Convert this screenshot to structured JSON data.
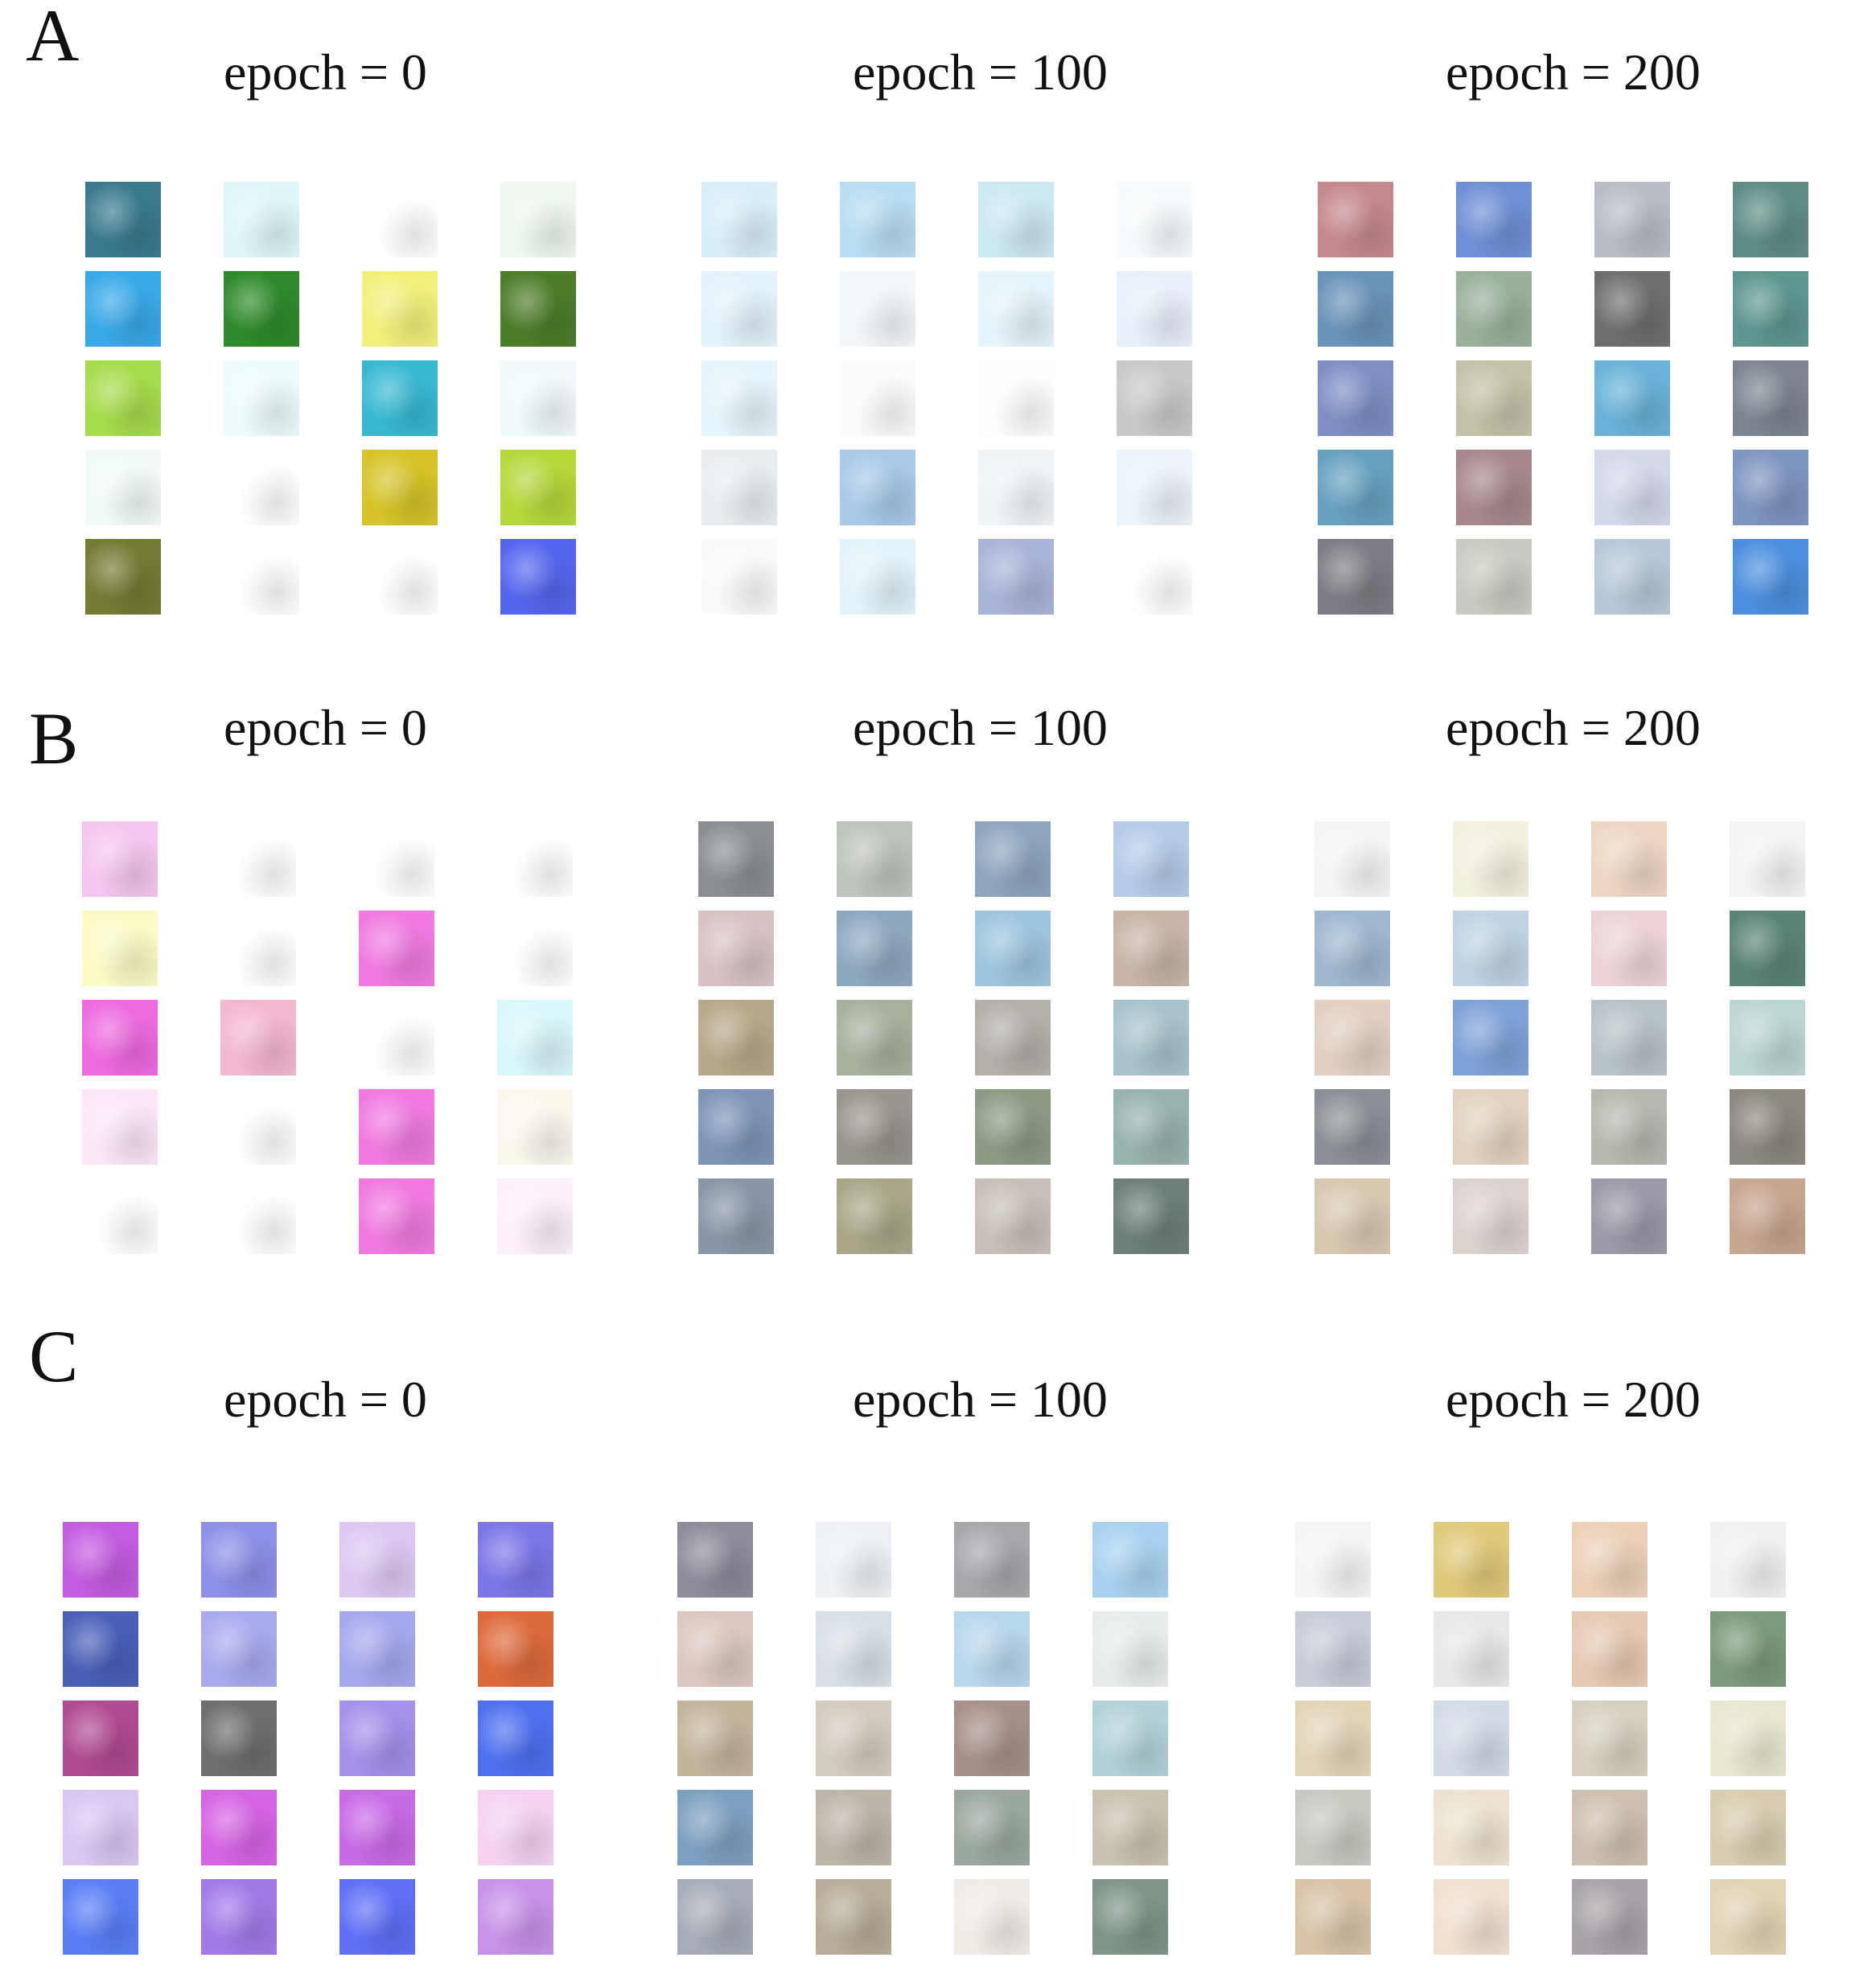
{
  "figure": {
    "panels": [
      {
        "letter": "A",
        "epochs": [
          {
            "label": "epoch = 0",
            "tiles": [
              [
                "#3a7a8e",
                "#dff6f8",
                "#ffffff",
                "#eef8ee"
              ],
              [
                "#39a9e8",
                "#2f8a2c",
                "#f2f07a",
                "#4d7d2a"
              ],
              [
                "#a6dc4c",
                "#eefbfd",
                "#38b9d2",
                "#f0fafc"
              ],
              [
                "#f2fbf7",
                "#ffffff",
                "#d6c428",
                "#b5d83a"
              ],
              [
                "#757a34",
                "#ffffff",
                "#ffffff",
                "#5566ee"
              ]
            ]
          },
          {
            "label": "epoch = 100",
            "tiles": [
              [
                "#d9eefa",
                "#b8dcf2",
                "#cbe8f3",
                "#f8fbfd"
              ],
              [
                "#e3f2fa",
                "#f1f7fb",
                "#e5f3fa",
                "#e8f0fa"
              ],
              [
                "#e6f4fb",
                "#fbfbfb",
                "#fbfdfe",
                "#c9c9c9"
              ],
              [
                "#e8eef0",
                "#a8c9e8",
                "#f0f4f6",
                "#eaf4fa"
              ],
              [
                "#f9fbfb",
                "#e3f3fa",
                "#aab4d8",
                "#ffffff"
              ]
            ]
          },
          {
            "label": "epoch = 200",
            "tiles": [
              [
                "#c5888e",
                "#6f90d6",
                "#b8bcc5",
                "#5f8d86"
              ],
              [
                "#6a93b8",
                "#9ab09b",
                "#6f6f6f",
                "#5f9690"
              ],
              [
                "#7f8fc4",
                "#c3c2a8",
                "#6ab2d8",
                "#7d8590"
              ],
              [
                "#67a1c0",
                "#a7888f",
                "#d3d8ea",
                "#7e95c0"
              ],
              [
                "#7d7d85",
                "#c8cbc0",
                "#b8c8d8",
                "#4c8fde"
              ]
            ]
          }
        ]
      },
      {
        "letter": "B",
        "epochs": [
          {
            "label": "epoch = 0",
            "tiles": [
              [
                "#f5c6ef",
                "#ffffff",
                "#ffffff",
                "#ffffff"
              ],
              [
                "#fbfbc6",
                "#ffffff",
                "#f07ae0",
                "#ffffff"
              ],
              [
                "#ee6ae0",
                "#f4b7d0",
                "#ffffff",
                "#d9f7fa"
              ],
              [
                "#fbe6f8",
                "#ffffff",
                "#f07ae0",
                "#fdf8ee"
              ],
              [
                "#ffffff",
                "#ffffff",
                "#f07ae0",
                "#fdf0fa"
              ]
            ]
          },
          {
            "label": "epoch = 100",
            "tiles": [
              [
                "#8b8f94",
                "#bfc3bd",
                "#8ea5be",
                "#b5cbe8"
              ],
              [
                "#d8c2c4",
                "#8ea8c0",
                "#9ec5df",
                "#c8b4a8"
              ],
              [
                "#b8a88a",
                "#a8b09e",
                "#b3b0aa",
                "#a8c3cc"
              ],
              [
                "#7e95b8",
                "#9a958e",
                "#8c9a86",
                "#98b2b0"
              ],
              [
                "#8a96a8",
                "#a9a788",
                "#c8c0b8",
                "#6e7f7a"
              ]
            ]
          },
          {
            "label": "epoch = 200",
            "tiles": [
              [
                "#f4f6f4",
                "#f3f0e0",
                "#eed6c4",
                "#f4f4f4"
              ],
              [
                "#9fb7cf",
                "#c0d3e3",
                "#edd3d8",
                "#5b8478"
              ],
              [
                "#e2cfc2",
                "#7fa2d8",
                "#b8c3c8",
                "#bcd6d2"
              ],
              [
                "#8b8f95",
                "#e2d3c0",
                "#b8b8b0",
                "#8d8880"
              ],
              [
                "#d8c8b0",
                "#dcd3cf",
                "#9a9aa8",
                "#c7a58f"
              ]
            ]
          }
        ]
      },
      {
        "letter": "C",
        "epochs": [
          {
            "label": "epoch = 0",
            "tiles": [
              [
                "#c35ce0",
                "#8d8fe8",
                "#dcc8f2",
                "#7c76e8"
              ],
              [
                "#4a5fb8",
                "#a9aaee",
                "#a6a8ee",
                "#dd6a3c"
              ],
              [
                "#b04a92",
                "#6e6e6e",
                "#a590ea",
                "#4f70f0"
              ],
              [
                "#d9c7f4",
                "#d664e4",
                "#c86ae6",
                "#f5d2f2"
              ],
              [
                "#5a7ef6",
                "#a27ae8",
                "#5f6ff6",
                "#c892e8"
              ]
            ]
          },
          {
            "label": "epoch = 100",
            "tiles": [
              [
                "#8d8c9a",
                "#eef1f5",
                "#a9a6ac",
                "#a9d2f0"
              ],
              [
                "#dcc8c0",
                "#d8e0e6",
                "#b8d6ec",
                "#e8ecec"
              ],
              [
                "#c4b49c",
                "#d4cbc0",
                "#a8908a",
                "#b2d2d8"
              ],
              [
                "#7ea0c0",
                "#bdb5aa",
                "#9aa8a0",
                "#c8c2b0"
              ],
              [
                "#a7adb8",
                "#b7ad98",
                "#f0ece6",
                "#7f958a"
              ]
            ]
          },
          {
            "label": "epoch = 200",
            "tiles": [
              [
                "#f5f5f3",
                "#e0c97a",
                "#ecd1b8",
                "#f1f1f1"
              ],
              [
                "#c8ccd8",
                "#e8e8e6",
                "#e6c9b2",
                "#7c9a7c"
              ],
              [
                "#e2d5b8",
                "#d3dbe6",
                "#d6d0c0",
                "#e9e7d0"
              ],
              [
                "#c9c9c2",
                "#ece2cf",
                "#cec0b0",
                "#d8cdb0"
              ],
              [
                "#d8c3a8",
                "#f0e0d0",
                "#a8a3a8",
                "#e3d3b5"
              ]
            ]
          }
        ]
      }
    ]
  }
}
